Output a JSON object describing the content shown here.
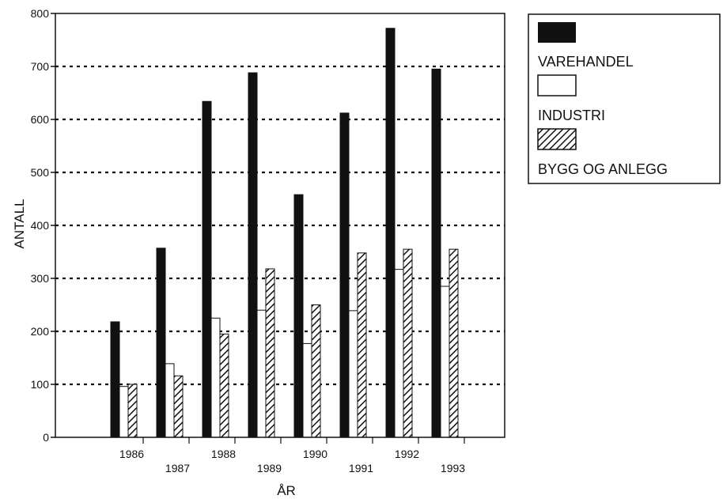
{
  "chart_data": {
    "type": "bar",
    "xlabel": "ÅR",
    "ylabel": "ANTALL",
    "categories": [
      "1986",
      "1987",
      "1988",
      "1989",
      "1990",
      "1991",
      "1992",
      "1993"
    ],
    "ylim": [
      0,
      800
    ],
    "yticks": [
      0,
      100,
      200,
      300,
      400,
      500,
      600,
      700,
      800
    ],
    "grid": true,
    "legend_position": "top-right",
    "series": [
      {
        "name": "VAREHANDEL",
        "fill": "solid",
        "color": "#111111",
        "values": [
          218,
          357,
          634,
          688,
          458,
          612,
          772,
          695
        ]
      },
      {
        "name": "INDUSTRI",
        "fill": "white",
        "color": "#ffffff",
        "values": [
          96,
          139,
          225,
          240,
          177,
          239,
          317,
          285
        ]
      },
      {
        "name": "BYGG OG ANLEGG",
        "fill": "hatched",
        "color": "#111111",
        "values": [
          100,
          116,
          195,
          318,
          250,
          348,
          355,
          355
        ]
      }
    ]
  }
}
